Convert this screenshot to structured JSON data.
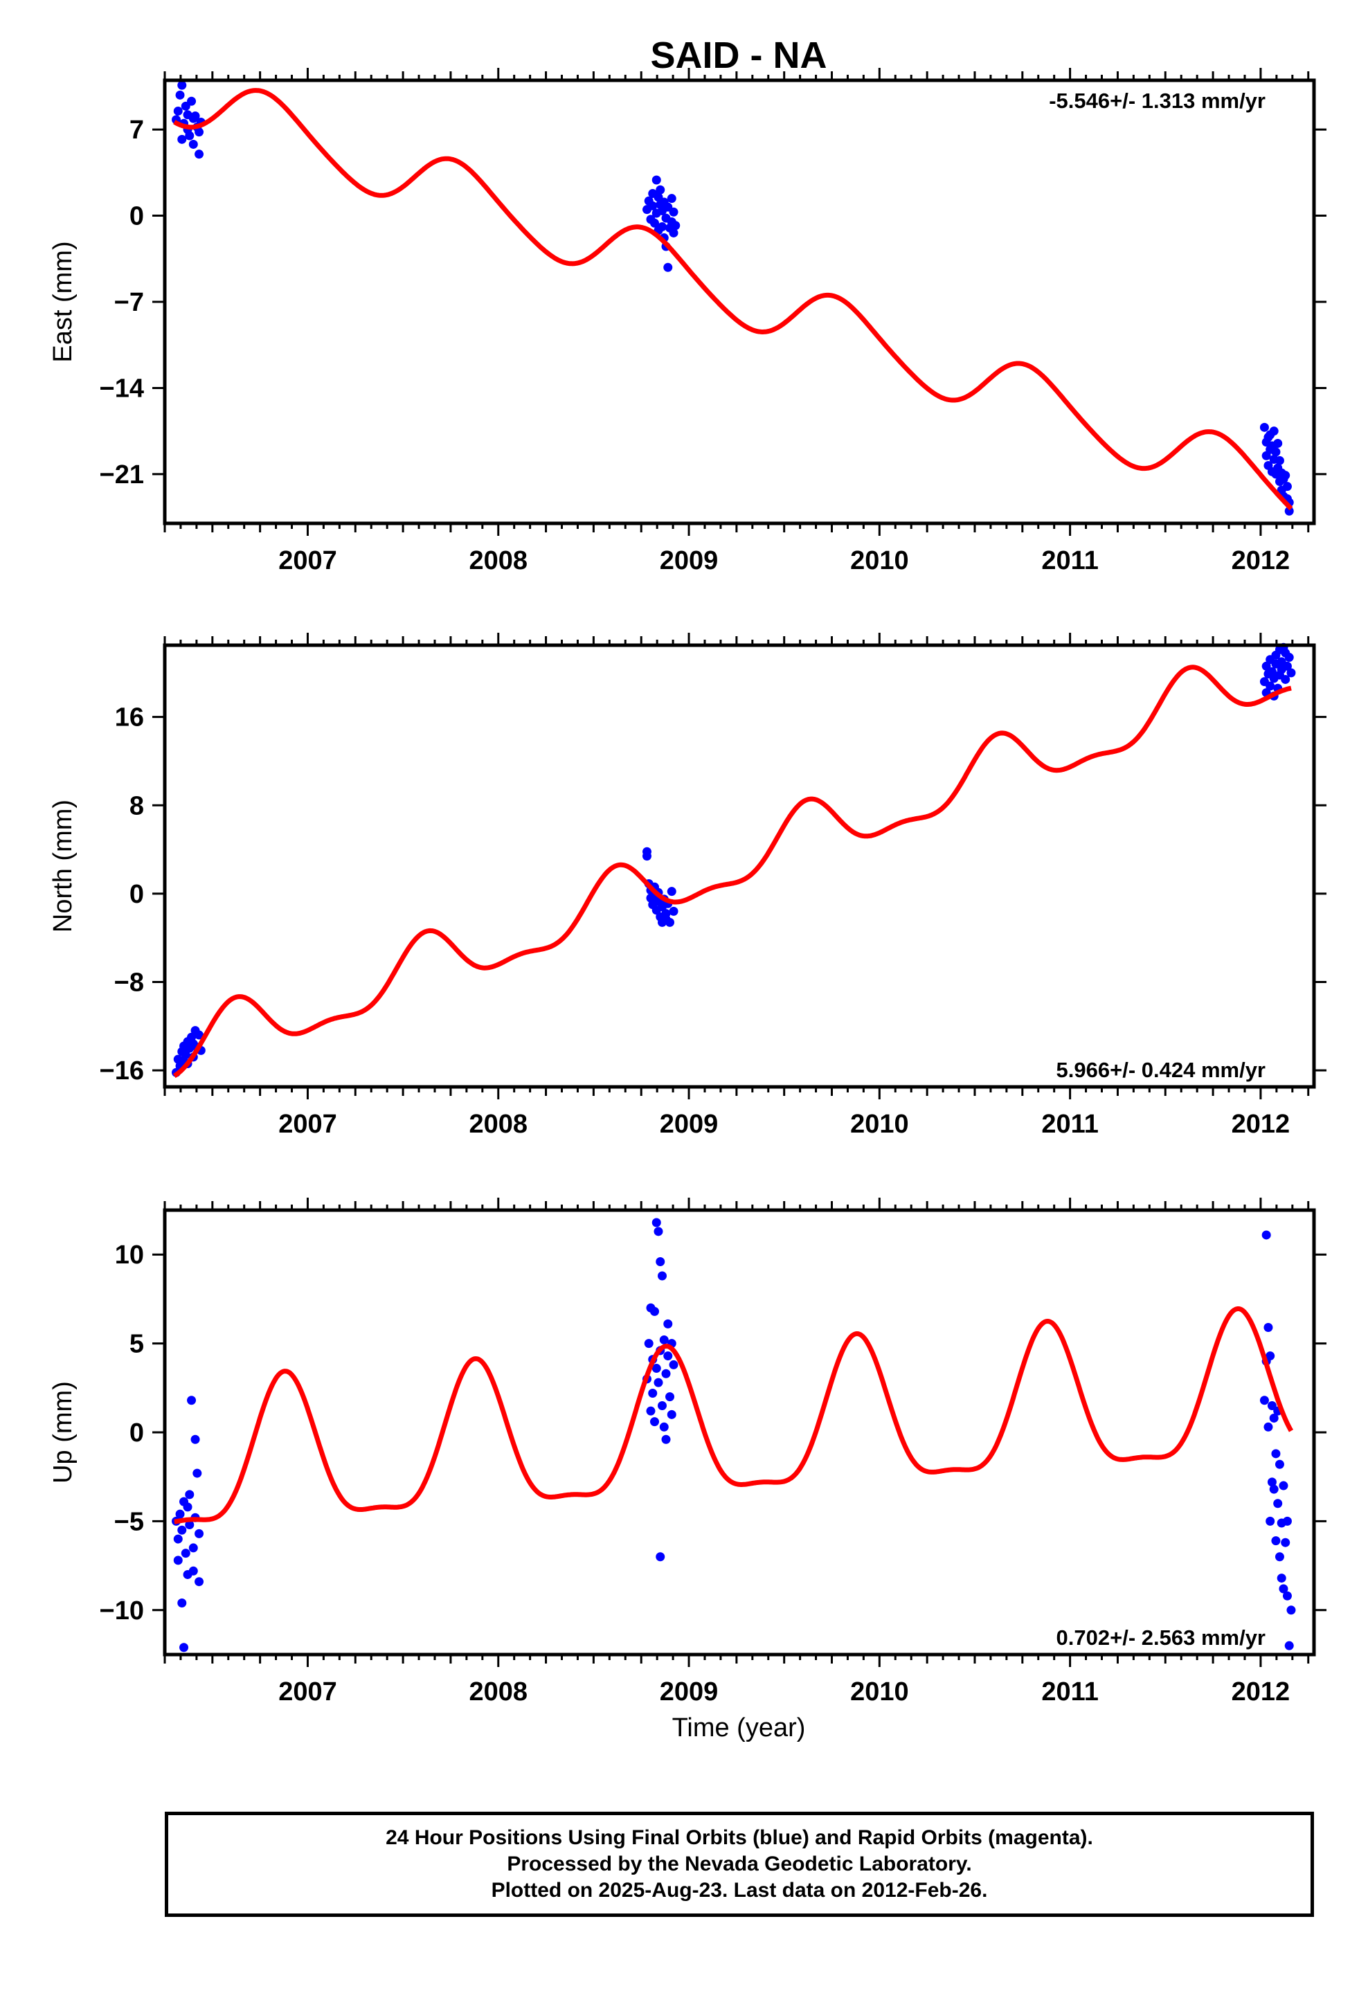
{
  "chart_data": {
    "title": "SAID - NA",
    "xlabel": "Time (year)",
    "x_tick_labels": [
      "2007",
      "2008",
      "2009",
      "2010",
      "2011",
      "2012"
    ],
    "xlim": [
      2006.25,
      2012.28
    ],
    "colors": {
      "data": "#0000ff",
      "model": "#ff0000",
      "frame": "#000000"
    },
    "panels": [
      {
        "type": "scatter",
        "component": "east",
        "ylabel": "East (mm)",
        "ylim": [
          -25,
          11
        ],
        "y_ticks": [
          -21,
          -14,
          -7,
          0,
          7
        ],
        "y_tick_labels": [
          "−21",
          "−14",
          "−7",
          "0",
          "7"
        ],
        "rate_label": "-5.546+/- 1.313 mm/yr",
        "rate_position": "top-right",
        "model": {
          "offset": 10.3,
          "slope": -5.546,
          "annual_amplitude": 2.5,
          "annual_peak_phase": 0.8,
          "semiannual_amplitude": 0.3,
          "semiannual_peak_phase": 0.7
        },
        "points": [
          {
            "x": 2006.31,
            "y": 7.8
          },
          {
            "x": 2006.32,
            "y": 8.5
          },
          {
            "x": 2006.33,
            "y": 9.8
          },
          {
            "x": 2006.34,
            "y": 10.6
          },
          {
            "x": 2006.34,
            "y": 6.2
          },
          {
            "x": 2006.35,
            "y": 7.5
          },
          {
            "x": 2006.36,
            "y": 8.9
          },
          {
            "x": 2006.37,
            "y": 7.0
          },
          {
            "x": 2006.37,
            "y": 8.2
          },
          {
            "x": 2006.38,
            "y": 6.5
          },
          {
            "x": 2006.39,
            "y": 9.3
          },
          {
            "x": 2006.4,
            "y": 7.9
          },
          {
            "x": 2006.4,
            "y": 5.8
          },
          {
            "x": 2006.41,
            "y": 8.1
          },
          {
            "x": 2006.42,
            "y": 7.2
          },
          {
            "x": 2006.43,
            "y": 5.0
          },
          {
            "x": 2006.43,
            "y": 6.8
          },
          {
            "x": 2006.44,
            "y": 7.6
          },
          {
            "x": 2008.78,
            "y": 0.5
          },
          {
            "x": 2008.79,
            "y": 1.2
          },
          {
            "x": 2008.8,
            "y": -0.3
          },
          {
            "x": 2008.81,
            "y": 0.8
          },
          {
            "x": 2008.81,
            "y": 1.8
          },
          {
            "x": 2008.82,
            "y": -0.6
          },
          {
            "x": 2008.83,
            "y": 0.2
          },
          {
            "x": 2008.83,
            "y": 2.9
          },
          {
            "x": 2008.84,
            "y": 1.5
          },
          {
            "x": 2008.84,
            "y": -1.2
          },
          {
            "x": 2008.85,
            "y": 0.9
          },
          {
            "x": 2008.85,
            "y": 2.1
          },
          {
            "x": 2008.86,
            "y": -0.9
          },
          {
            "x": 2008.86,
            "y": 0.4
          },
          {
            "x": 2008.87,
            "y": 1.1
          },
          {
            "x": 2008.87,
            "y": -1.8
          },
          {
            "x": 2008.88,
            "y": -0.2
          },
          {
            "x": 2008.88,
            "y": -2.5
          },
          {
            "x": 2008.89,
            "y": 0.7
          },
          {
            "x": 2008.89,
            "y": -4.2
          },
          {
            "x": 2008.9,
            "y": -1.0
          },
          {
            "x": 2008.91,
            "y": 1.4
          },
          {
            "x": 2008.91,
            "y": -0.5
          },
          {
            "x": 2008.92,
            "y": 0.3
          },
          {
            "x": 2008.92,
            "y": -1.4
          },
          {
            "x": 2008.93,
            "y": -0.8
          },
          {
            "x": 2012.02,
            "y": -17.2
          },
          {
            "x": 2012.03,
            "y": -18.4
          },
          {
            "x": 2012.03,
            "y": -19.5
          },
          {
            "x": 2012.04,
            "y": -18.0
          },
          {
            "x": 2012.04,
            "y": -20.3
          },
          {
            "x": 2012.05,
            "y": -19.0
          },
          {
            "x": 2012.05,
            "y": -17.8
          },
          {
            "x": 2012.06,
            "y": -20.8
          },
          {
            "x": 2012.06,
            "y": -18.7
          },
          {
            "x": 2012.07,
            "y": -19.8
          },
          {
            "x": 2012.07,
            "y": -17.5
          },
          {
            "x": 2012.08,
            "y": -21.0
          },
          {
            "x": 2012.08,
            "y": -19.2
          },
          {
            "x": 2012.09,
            "y": -18.5
          },
          {
            "x": 2012.09,
            "y": -20.5
          },
          {
            "x": 2012.1,
            "y": -21.6
          },
          {
            "x": 2012.1,
            "y": -19.9
          },
          {
            "x": 2012.11,
            "y": -22.3
          },
          {
            "x": 2012.11,
            "y": -20.9
          },
          {
            "x": 2012.12,
            "y": -21.4
          },
          {
            "x": 2012.12,
            "y": -22.8
          },
          {
            "x": 2012.13,
            "y": -21.1
          },
          {
            "x": 2012.14,
            "y": -23.0
          },
          {
            "x": 2012.14,
            "y": -22.0
          },
          {
            "x": 2012.15,
            "y": -24.0
          },
          {
            "x": 2012.15,
            "y": -23.3
          }
        ]
      },
      {
        "type": "scatter",
        "component": "north",
        "ylabel": "North (mm)",
        "ylim": [
          -17.5,
          22.5
        ],
        "y_ticks": [
          -16,
          -8,
          0,
          8,
          16
        ],
        "y_tick_labels": [
          "−16",
          "−8",
          "0",
          "8",
          "16"
        ],
        "rate_label": "5.966+/- 0.424 mm/yr",
        "rate_position": "bottom-right",
        "model": {
          "offset": -15.1,
          "slope": 5.966,
          "annual_amplitude": 2.5,
          "annual_peak_phase": 0.62,
          "semiannual_amplitude": 1.0,
          "semiannual_peak_phase": 0.12
        },
        "points": [
          {
            "x": 2006.31,
            "y": -16.2
          },
          {
            "x": 2006.32,
            "y": -15.0
          },
          {
            "x": 2006.33,
            "y": -15.6
          },
          {
            "x": 2006.34,
            "y": -14.3
          },
          {
            "x": 2006.35,
            "y": -15.2
          },
          {
            "x": 2006.35,
            "y": -13.8
          },
          {
            "x": 2006.36,
            "y": -14.6
          },
          {
            "x": 2006.37,
            "y": -13.4
          },
          {
            "x": 2006.37,
            "y": -15.4
          },
          {
            "x": 2006.38,
            "y": -14.0
          },
          {
            "x": 2006.39,
            "y": -13.0
          },
          {
            "x": 2006.4,
            "y": -14.8
          },
          {
            "x": 2006.4,
            "y": -13.6
          },
          {
            "x": 2006.41,
            "y": -12.4
          },
          {
            "x": 2006.42,
            "y": -13.9
          },
          {
            "x": 2006.43,
            "y": -12.8
          },
          {
            "x": 2006.44,
            "y": -14.2
          },
          {
            "x": 2008.78,
            "y": 3.8
          },
          {
            "x": 2008.78,
            "y": 3.4
          },
          {
            "x": 2008.79,
            "y": 0.9
          },
          {
            "x": 2008.8,
            "y": -0.4
          },
          {
            "x": 2008.8,
            "y": 0.3
          },
          {
            "x": 2008.81,
            "y": -1.0
          },
          {
            "x": 2008.82,
            "y": 0.6
          },
          {
            "x": 2008.82,
            "y": -0.2
          },
          {
            "x": 2008.83,
            "y": -1.5
          },
          {
            "x": 2008.84,
            "y": -0.7
          },
          {
            "x": 2008.84,
            "y": 0.1
          },
          {
            "x": 2008.85,
            "y": -2.1
          },
          {
            "x": 2008.86,
            "y": -1.2
          },
          {
            "x": 2008.86,
            "y": -2.6
          },
          {
            "x": 2008.87,
            "y": -0.5
          },
          {
            "x": 2008.88,
            "y": -1.8
          },
          {
            "x": 2008.88,
            "y": -2.3
          },
          {
            "x": 2008.89,
            "y": -0.9
          },
          {
            "x": 2008.9,
            "y": -2.6
          },
          {
            "x": 2008.91,
            "y": 0.2
          },
          {
            "x": 2008.92,
            "y": -1.6
          },
          {
            "x": 2012.02,
            "y": 19.2
          },
          {
            "x": 2012.03,
            "y": 20.6
          },
          {
            "x": 2012.03,
            "y": 18.2
          },
          {
            "x": 2012.04,
            "y": 19.9
          },
          {
            "x": 2012.05,
            "y": 21.2
          },
          {
            "x": 2012.05,
            "y": 18.8
          },
          {
            "x": 2012.06,
            "y": 20.1
          },
          {
            "x": 2012.07,
            "y": 17.9
          },
          {
            "x": 2012.07,
            "y": 19.5
          },
          {
            "x": 2012.08,
            "y": 21.6
          },
          {
            "x": 2012.08,
            "y": 20.8
          },
          {
            "x": 2012.09,
            "y": 18.6
          },
          {
            "x": 2012.1,
            "y": 22.1
          },
          {
            "x": 2012.1,
            "y": 19.8
          },
          {
            "x": 2012.11,
            "y": 21.0
          },
          {
            "x": 2012.11,
            "y": 20.3
          },
          {
            "x": 2012.12,
            "y": 22.3
          },
          {
            "x": 2012.13,
            "y": 19.4
          },
          {
            "x": 2012.13,
            "y": 21.8
          },
          {
            "x": 2012.14,
            "y": 20.6
          },
          {
            "x": 2012.15,
            "y": 21.4
          },
          {
            "x": 2012.16,
            "y": 20.0
          }
        ]
      },
      {
        "type": "scatter",
        "component": "up",
        "ylabel": "Up (mm)",
        "ylim": [
          -12.5,
          12.5
        ],
        "y_ticks": [
          -10,
          -5,
          0,
          5,
          10
        ],
        "y_tick_labels": [
          "−10",
          "−5",
          "0",
          "5",
          "10"
        ],
        "rate_label": "0.702+/- 2.563 mm/yr",
        "rate_position": "bottom-right",
        "model": {
          "offset": -2.2,
          "slope": 0.702,
          "annual_amplitude": 4.0,
          "annual_peak_phase": 0.88,
          "semiannual_amplitude": 1.2,
          "semiannual_peak_phase": 0.38
        },
        "points": [
          {
            "x": 2006.31,
            "y": -5.0
          },
          {
            "x": 2006.32,
            "y": -6.0
          },
          {
            "x": 2006.32,
            "y": -7.2
          },
          {
            "x": 2006.33,
            "y": -4.6
          },
          {
            "x": 2006.34,
            "y": -5.5
          },
          {
            "x": 2006.34,
            "y": -9.6
          },
          {
            "x": 2006.35,
            "y": -3.9
          },
          {
            "x": 2006.35,
            "y": -12.1
          },
          {
            "x": 2006.36,
            "y": -6.8
          },
          {
            "x": 2006.37,
            "y": -4.2
          },
          {
            "x": 2006.37,
            "y": -8.0
          },
          {
            "x": 2006.38,
            "y": -5.2
          },
          {
            "x": 2006.38,
            "y": -3.5
          },
          {
            "x": 2006.39,
            "y": 1.8
          },
          {
            "x": 2006.4,
            "y": -6.5
          },
          {
            "x": 2006.4,
            "y": -7.8
          },
          {
            "x": 2006.41,
            "y": -0.4
          },
          {
            "x": 2006.41,
            "y": -4.8
          },
          {
            "x": 2006.42,
            "y": -2.3
          },
          {
            "x": 2006.43,
            "y": -8.4
          },
          {
            "x": 2006.43,
            "y": -5.7
          },
          {
            "x": 2008.78,
            "y": 3.0
          },
          {
            "x": 2008.79,
            "y": 5.0
          },
          {
            "x": 2008.8,
            "y": 1.2
          },
          {
            "x": 2008.8,
            "y": 7.0
          },
          {
            "x": 2008.81,
            "y": 2.2
          },
          {
            "x": 2008.81,
            "y": 4.1
          },
          {
            "x": 2008.82,
            "y": 6.8
          },
          {
            "x": 2008.82,
            "y": 0.6
          },
          {
            "x": 2008.83,
            "y": 3.6
          },
          {
            "x": 2008.83,
            "y": 11.8
          },
          {
            "x": 2008.84,
            "y": 2.8
          },
          {
            "x": 2008.84,
            "y": 11.3
          },
          {
            "x": 2008.85,
            "y": 4.6
          },
          {
            "x": 2008.85,
            "y": -7.0
          },
          {
            "x": 2008.85,
            "y": 9.6
          },
          {
            "x": 2008.86,
            "y": 1.5
          },
          {
            "x": 2008.86,
            "y": 8.8
          },
          {
            "x": 2008.87,
            "y": 5.2
          },
          {
            "x": 2008.87,
            "y": 0.3
          },
          {
            "x": 2008.88,
            "y": 3.3
          },
          {
            "x": 2008.88,
            "y": -0.4
          },
          {
            "x": 2008.89,
            "y": 4.3
          },
          {
            "x": 2008.89,
            "y": 6.1
          },
          {
            "x": 2008.9,
            "y": 2.0
          },
          {
            "x": 2008.91,
            "y": 5.0
          },
          {
            "x": 2008.91,
            "y": 1.0
          },
          {
            "x": 2008.92,
            "y": 3.8
          },
          {
            "x": 2012.02,
            "y": 1.8
          },
          {
            "x": 2012.03,
            "y": 11.1
          },
          {
            "x": 2012.03,
            "y": 4.0
          },
          {
            "x": 2012.04,
            "y": 5.9
          },
          {
            "x": 2012.04,
            "y": 0.3
          },
          {
            "x": 2012.05,
            "y": 4.3
          },
          {
            "x": 2012.05,
            "y": -5.0
          },
          {
            "x": 2012.06,
            "y": 1.5
          },
          {
            "x": 2012.06,
            "y": -2.8
          },
          {
            "x": 2012.07,
            "y": 0.8
          },
          {
            "x": 2012.07,
            "y": -3.2
          },
          {
            "x": 2012.08,
            "y": -6.1
          },
          {
            "x": 2012.08,
            "y": -1.2
          },
          {
            "x": 2012.09,
            "y": -4.0
          },
          {
            "x": 2012.09,
            "y": 1.2
          },
          {
            "x": 2012.1,
            "y": -1.8
          },
          {
            "x": 2012.1,
            "y": -7.0
          },
          {
            "x": 2012.11,
            "y": -5.1
          },
          {
            "x": 2012.11,
            "y": -8.2
          },
          {
            "x": 2012.12,
            "y": -3.0
          },
          {
            "x": 2012.12,
            "y": -8.8
          },
          {
            "x": 2012.13,
            "y": -6.2
          },
          {
            "x": 2012.14,
            "y": -9.2
          },
          {
            "x": 2012.14,
            "y": -5.0
          },
          {
            "x": 2012.15,
            "y": -12.0
          },
          {
            "x": 2012.16,
            "y": -10.0
          }
        ]
      }
    ]
  },
  "footer": {
    "line1": "24 Hour Positions Using Final Orbits (blue) and Rapid Orbits (magenta).",
    "line2": "Processed by the Nevada Geodetic Laboratory.",
    "line3": "Plotted on 2025-Aug-23. Last data on 2012-Feb-26."
  }
}
